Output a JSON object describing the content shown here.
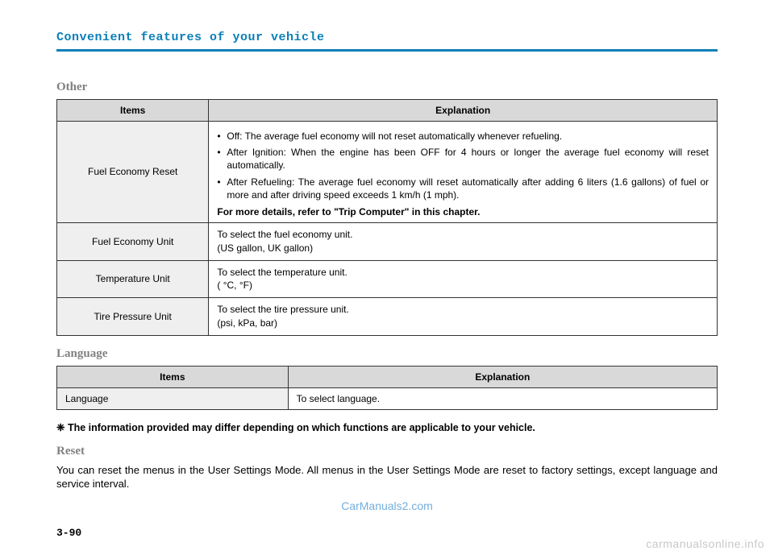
{
  "header": {
    "title": "Convenient features of your vehicle"
  },
  "other": {
    "section_title": "Other",
    "headers": {
      "items": "Items",
      "explanation": "Explanation"
    },
    "rows": [
      {
        "item": "Fuel Economy Reset",
        "bullets": [
          "Off: The average fuel economy will not reset automatically whenever refueling.",
          "After Ignition: When the engine has been OFF for 4 hours or longer the average fuel economy will reset automatically.",
          "After Refueling: The average fuel economy will reset automatically after adding 6 liters (1.6 gallons) of fuel or more and after driving speed exceeds 1 km/h (1 mph)."
        ],
        "bold": "For more details, refer to \"Trip Computer\" in this chapter."
      },
      {
        "item": "Fuel Economy Unit",
        "line1": "To select the fuel economy unit.",
        "line2": "(US gallon, UK gallon)"
      },
      {
        "item": "Temperature Unit",
        "line1": "To select the temperature unit.",
        "line2": "( °C, °F)"
      },
      {
        "item": "Tire Pressure Unit",
        "line1": "To select the tire pressure unit.",
        "line2": "(psi, kPa, bar)"
      }
    ]
  },
  "language": {
    "section_title": "Language",
    "headers": {
      "items": "Items",
      "explanation": "Explanation"
    },
    "row": {
      "item": "Language",
      "explanation": "To select language."
    }
  },
  "note": {
    "symbol": "❈",
    "text": "The information provided may differ depending on which functions are applicable to your vehicle."
  },
  "reset": {
    "section_title": "Reset",
    "body": "You can reset the menus in the User Settings Mode. All menus in the User Settings Mode are reset to factory settings, except language and service interval."
  },
  "page_number": "3-90",
  "watermarks": {
    "main": "CarManuals2.com",
    "bottom": "carmanualsonline.info"
  }
}
